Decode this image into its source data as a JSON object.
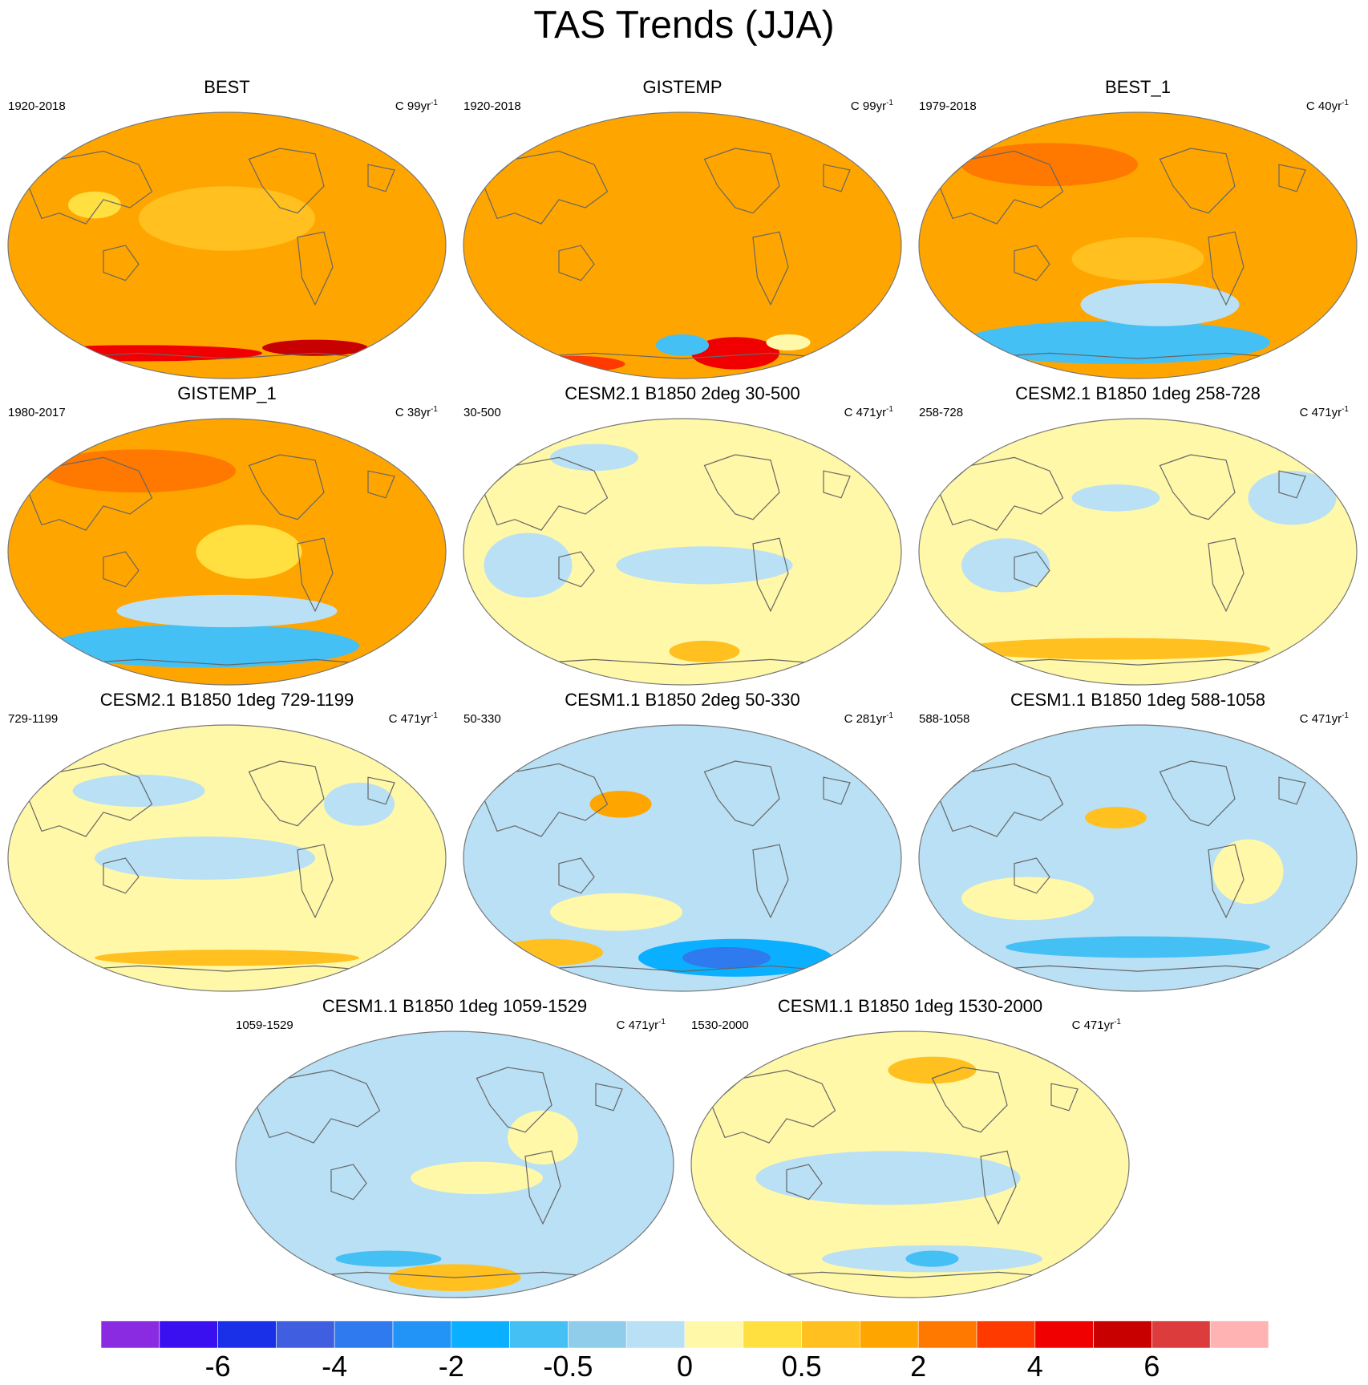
{
  "title": "TAS Trends (JJA)",
  "chart_data": {
    "type": "heatmap",
    "title": "TAS Trends (JJA)",
    "projection": "Winkel Tripel (global map)",
    "colorbar": {
      "levels": [
        "-6",
        "-4",
        "-2",
        "-0.5",
        "0",
        "0.5",
        "2",
        "4",
        "6"
      ],
      "tick_label_positions": [
        2,
        4,
        6,
        8,
        10,
        12,
        14,
        16,
        18
      ],
      "colors": [
        "#8a2be2",
        "#3a10f0",
        "#1a30e8",
        "#3f5fe0",
        "#2f7aee",
        "#2294f8",
        "#0ab0ff",
        "#44c0f4",
        "#8fcdea",
        "#b9e0f4",
        "#fff8a8",
        "#ffe040",
        "#ffc020",
        "#ffa500",
        "#ff7800",
        "#ff3a00",
        "#f00000",
        "#c80000",
        "#dc3c3c",
        "#ffb3b3"
      ]
    },
    "panels": [
      {
        "title": "BEST",
        "period": "1920-2018",
        "units_base": "C 99yr",
        "units_exp": "-1",
        "base_level": 13,
        "features": [
          {
            "x": 0.3,
            "y": 0.9,
            "rx": 0.28,
            "ry": 0.03,
            "lvl": 16
          },
          {
            "x": 0.7,
            "y": 0.88,
            "rx": 0.12,
            "ry": 0.03,
            "lvl": 17
          },
          {
            "x": 0.5,
            "y": 0.4,
            "rx": 0.2,
            "ry": 0.12,
            "lvl": 12
          },
          {
            "x": 0.2,
            "y": 0.35,
            "rx": 0.06,
            "ry": 0.05,
            "lvl": 11
          }
        ]
      },
      {
        "title": "GISTEMP",
        "period": "1920-2018",
        "units_base": "C 99yr",
        "units_exp": "-1",
        "base_level": 13,
        "features": [
          {
            "x": 0.62,
            "y": 0.9,
            "rx": 0.1,
            "ry": 0.06,
            "lvl": 16
          },
          {
            "x": 0.5,
            "y": 0.87,
            "rx": 0.06,
            "ry": 0.04,
            "lvl": 7
          },
          {
            "x": 0.74,
            "y": 0.86,
            "rx": 0.05,
            "ry": 0.03,
            "lvl": 10
          },
          {
            "x": 0.25,
            "y": 0.94,
            "rx": 0.12,
            "ry": 0.03,
            "lvl": 15
          }
        ]
      },
      {
        "title": "BEST_1",
        "period": "1979-2018",
        "units_base": "C 40yr",
        "units_exp": "-1",
        "base_level": 13,
        "features": [
          {
            "x": 0.45,
            "y": 0.86,
            "rx": 0.35,
            "ry": 0.08,
            "lvl": 7
          },
          {
            "x": 0.55,
            "y": 0.72,
            "rx": 0.18,
            "ry": 0.08,
            "lvl": 9
          },
          {
            "x": 0.3,
            "y": 0.2,
            "rx": 0.2,
            "ry": 0.08,
            "lvl": 14
          },
          {
            "x": 0.5,
            "y": 0.55,
            "rx": 0.15,
            "ry": 0.08,
            "lvl": 12
          }
        ]
      },
      {
        "title": "GISTEMP_1",
        "period": "1980-2017",
        "units_base": "C 38yr",
        "units_exp": "-1",
        "base_level": 13,
        "features": [
          {
            "x": 0.45,
            "y": 0.85,
            "rx": 0.35,
            "ry": 0.08,
            "lvl": 7
          },
          {
            "x": 0.5,
            "y": 0.72,
            "rx": 0.25,
            "ry": 0.06,
            "lvl": 9
          },
          {
            "x": 0.3,
            "y": 0.2,
            "rx": 0.22,
            "ry": 0.08,
            "lvl": 14
          },
          {
            "x": 0.55,
            "y": 0.5,
            "rx": 0.12,
            "ry": 0.1,
            "lvl": 11
          }
        ]
      },
      {
        "title": "CESM2.1 B1850 2deg 30-500",
        "period": "30-500",
        "units_base": "C 471yr",
        "units_exp": "-1",
        "base_level": 10,
        "features": [
          {
            "x": 0.55,
            "y": 0.55,
            "rx": 0.2,
            "ry": 0.07,
            "lvl": 9
          },
          {
            "x": 0.15,
            "y": 0.55,
            "rx": 0.1,
            "ry": 0.12,
            "lvl": 9
          },
          {
            "x": 0.55,
            "y": 0.87,
            "rx": 0.08,
            "ry": 0.04,
            "lvl": 12
          },
          {
            "x": 0.3,
            "y": 0.15,
            "rx": 0.1,
            "ry": 0.05,
            "lvl": 9
          }
        ]
      },
      {
        "title": "CESM2.1 B1850 1deg 258-728",
        "period": "258-728",
        "units_base": "C 471yr",
        "units_exp": "-1",
        "base_level": 10,
        "features": [
          {
            "x": 0.45,
            "y": 0.86,
            "rx": 0.35,
            "ry": 0.04,
            "lvl": 12
          },
          {
            "x": 0.2,
            "y": 0.55,
            "rx": 0.1,
            "ry": 0.1,
            "lvl": 9
          },
          {
            "x": 0.45,
            "y": 0.3,
            "rx": 0.1,
            "ry": 0.05,
            "lvl": 9
          },
          {
            "x": 0.85,
            "y": 0.3,
            "rx": 0.1,
            "ry": 0.1,
            "lvl": 9
          }
        ]
      },
      {
        "title": "CESM2.1 B1850 1deg 729-1199",
        "period": "729-1199",
        "units_base": "C 471yr",
        "units_exp": "-1",
        "base_level": 10,
        "features": [
          {
            "x": 0.45,
            "y": 0.5,
            "rx": 0.25,
            "ry": 0.08,
            "lvl": 9
          },
          {
            "x": 0.3,
            "y": 0.25,
            "rx": 0.15,
            "ry": 0.06,
            "lvl": 9
          },
          {
            "x": 0.5,
            "y": 0.87,
            "rx": 0.3,
            "ry": 0.03,
            "lvl": 12
          },
          {
            "x": 0.8,
            "y": 0.3,
            "rx": 0.08,
            "ry": 0.08,
            "lvl": 9
          }
        ]
      },
      {
        "title": "CESM1.1 B1850 2deg 50-330",
        "period": "50-330",
        "units_base": "C 281yr",
        "units_exp": "-1",
        "base_level": 9,
        "features": [
          {
            "x": 0.62,
            "y": 0.87,
            "rx": 0.22,
            "ry": 0.07,
            "lvl": 6
          },
          {
            "x": 0.6,
            "y": 0.87,
            "rx": 0.1,
            "ry": 0.04,
            "lvl": 4
          },
          {
            "x": 0.36,
            "y": 0.3,
            "rx": 0.07,
            "ry": 0.05,
            "lvl": 13
          },
          {
            "x": 0.35,
            "y": 0.7,
            "rx": 0.15,
            "ry": 0.07,
            "lvl": 10
          },
          {
            "x": 0.2,
            "y": 0.85,
            "rx": 0.12,
            "ry": 0.05,
            "lvl": 12
          }
        ]
      },
      {
        "title": "CESM1.1 B1850 1deg 588-1058",
        "period": "588-1058",
        "units_base": "C 471yr",
        "units_exp": "-1",
        "base_level": 9,
        "features": [
          {
            "x": 0.5,
            "y": 0.83,
            "rx": 0.3,
            "ry": 0.04,
            "lvl": 7
          },
          {
            "x": 0.45,
            "y": 0.35,
            "rx": 0.07,
            "ry": 0.04,
            "lvl": 12
          },
          {
            "x": 0.25,
            "y": 0.65,
            "rx": 0.15,
            "ry": 0.08,
            "lvl": 10
          },
          {
            "x": 0.75,
            "y": 0.55,
            "rx": 0.08,
            "ry": 0.12,
            "lvl": 10
          }
        ]
      },
      {
        "title": "CESM1.1 B1850 1deg 1059-1529",
        "period": "1059-1529",
        "units_base": "C 471yr",
        "units_exp": "-1",
        "base_level": 9,
        "features": [
          {
            "x": 0.5,
            "y": 0.92,
            "rx": 0.15,
            "ry": 0.05,
            "lvl": 12
          },
          {
            "x": 0.35,
            "y": 0.85,
            "rx": 0.12,
            "ry": 0.03,
            "lvl": 7
          },
          {
            "x": 0.55,
            "y": 0.55,
            "rx": 0.15,
            "ry": 0.06,
            "lvl": 10
          },
          {
            "x": 0.7,
            "y": 0.4,
            "rx": 0.08,
            "ry": 0.1,
            "lvl": 10
          }
        ]
      },
      {
        "title": "CESM1.1 B1850 1deg 1530-2000",
        "period": "1530-2000",
        "units_base": "C 471yr",
        "units_exp": "-1",
        "base_level": 10,
        "features": [
          {
            "x": 0.45,
            "y": 0.55,
            "rx": 0.3,
            "ry": 0.1,
            "lvl": 9
          },
          {
            "x": 0.55,
            "y": 0.15,
            "rx": 0.1,
            "ry": 0.05,
            "lvl": 12
          },
          {
            "x": 0.55,
            "y": 0.85,
            "rx": 0.25,
            "ry": 0.05,
            "lvl": 9
          },
          {
            "x": 0.55,
            "y": 0.85,
            "rx": 0.06,
            "ry": 0.03,
            "lvl": 7
          }
        ]
      }
    ]
  }
}
